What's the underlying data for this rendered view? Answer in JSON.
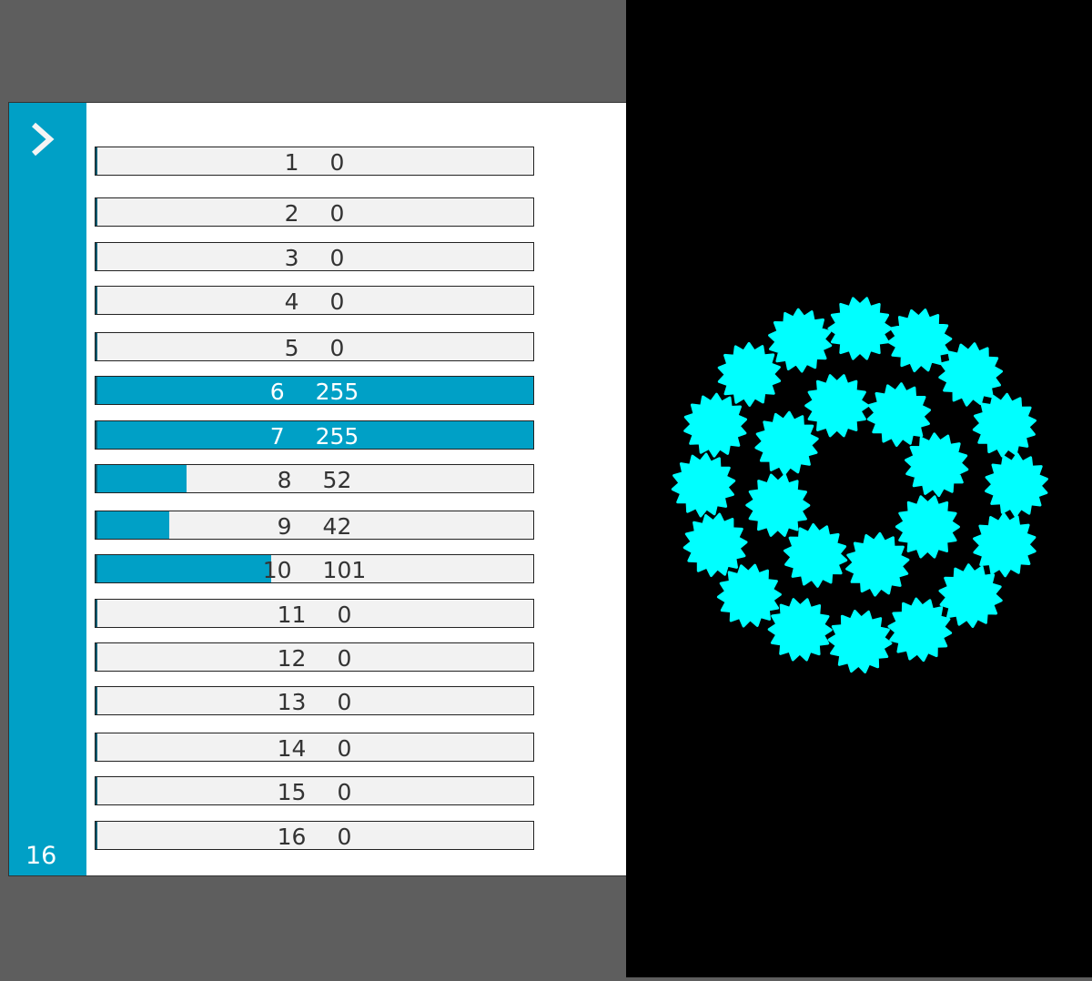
{
  "sidebar": {
    "expand_icon": "chevron-right-icon",
    "channel_count": "16"
  },
  "channels": [
    {
      "channel": "1",
      "value": 0
    },
    {
      "channel": "2",
      "value": 0
    },
    {
      "channel": "3",
      "value": 0
    },
    {
      "channel": "4",
      "value": 0
    },
    {
      "channel": "5",
      "value": 0
    },
    {
      "channel": "6",
      "value": 255
    },
    {
      "channel": "7",
      "value": 255
    },
    {
      "channel": "8",
      "value": 52
    },
    {
      "channel": "9",
      "value": 42
    },
    {
      "channel": "10",
      "value": 101
    },
    {
      "channel": "11",
      "value": 0
    },
    {
      "channel": "12",
      "value": 0
    },
    {
      "channel": "13",
      "value": 0
    },
    {
      "channel": "14",
      "value": 0
    },
    {
      "channel": "15",
      "value": 0
    },
    {
      "channel": "16",
      "value": 0
    }
  ],
  "max_value": 255,
  "visualizer": {
    "shape": "star",
    "outer_ring_count": 16,
    "inner_ring_count": 8
  },
  "colors": {
    "accent": "#00a0c6",
    "shape": "#00ffff",
    "background": "#000000",
    "frame": "#5e5e5e"
  }
}
